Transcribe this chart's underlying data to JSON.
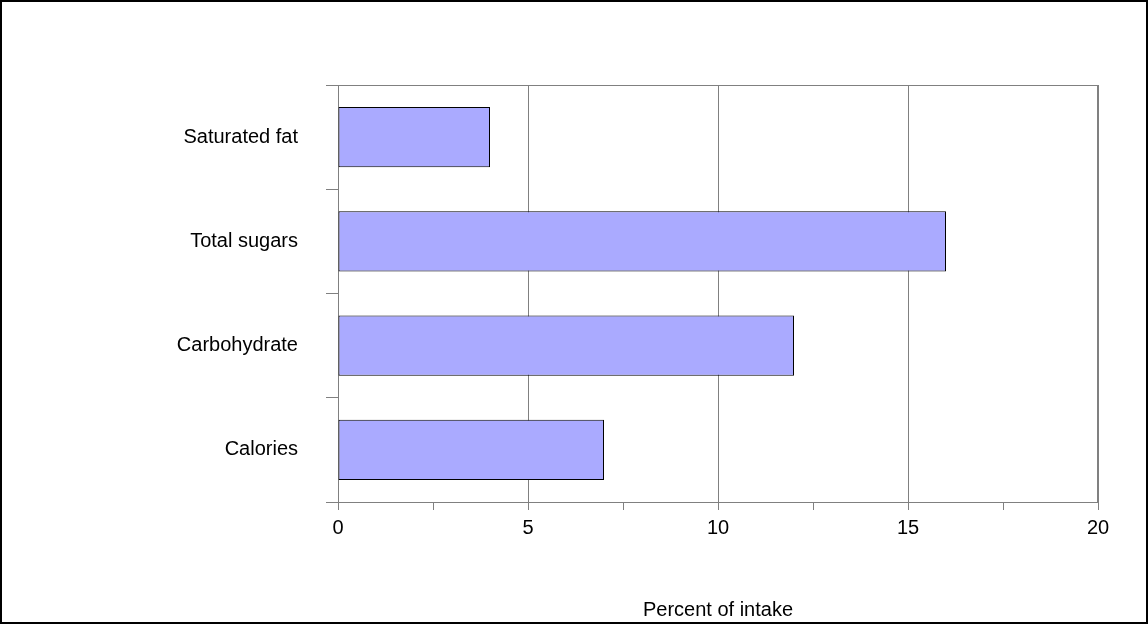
{
  "chart_data": {
    "type": "bar",
    "orientation": "horizontal",
    "categories": [
      "Saturated fat",
      "Total sugars",
      "Carbohydrate",
      "Calories"
    ],
    "values": [
      4,
      16,
      12,
      7
    ],
    "color": "#aaaaff",
    "xlabel": "Percent of intake",
    "xlim": [
      0,
      20
    ],
    "xticks": [
      0,
      {
        "value": 2.5,
        "label": null
      },
      5,
      {
        "value": 7.5,
        "label": null
      },
      10,
      {
        "value": 12.5,
        "label": null
      },
      15,
      {
        "value": 17.5,
        "label": null
      },
      20
    ],
    "grid": "x"
  }
}
